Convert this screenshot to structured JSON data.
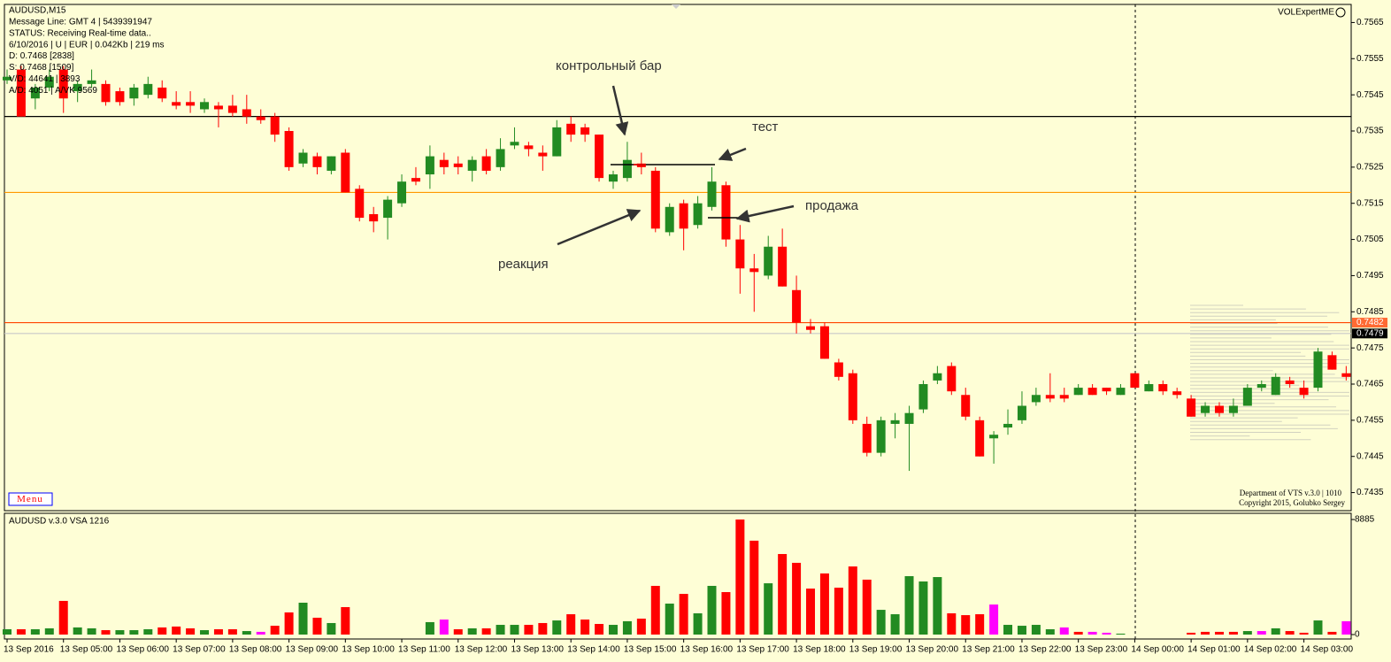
{
  "header": {
    "lines": [
      "AUDUSD,M15",
      "Message Line: GMT 4 | 5439391947",
      "STATUS:  Receiving Real-time data..",
      "6/10/2016 | U | EUR | 0.042Kb | 219 ms",
      "D: 0.7468  [2838]",
      "S: 0.7468  [1509]",
      "V/D: 44641 | 3893",
      "A/D: 4051 | A/VK 9569"
    ],
    "indicator": "VOLExpertME",
    "menu": "Menu",
    "footer": [
      "Department of VTS  v.3.0 | 1010",
      "Copyright 2015, Golubko Sergey"
    ]
  },
  "chart_data": [
    {
      "type": "candlestick",
      "up_color": "#228b22",
      "down_color": "#ff0000",
      "ylim": [
        0.743,
        0.757
      ],
      "yticks": [
        0.7565,
        0.7555,
        0.7545,
        0.7535,
        0.7525,
        0.7515,
        0.7505,
        0.7495,
        0.7485,
        0.7475,
        0.7465,
        0.7455,
        0.7445,
        0.7435
      ],
      "levels": [
        {
          "value": 0.7539,
          "color": "#000000"
        },
        {
          "value": 0.7518,
          "color": "#ff9900"
        },
        {
          "value": 0.7482,
          "color": "#ff4500",
          "label_bg": "#ff6a33"
        },
        {
          "value": 0.7479,
          "color": "#c8c8c8",
          "label_bg": "#000000"
        }
      ],
      "annotations": [
        "контрольный бар",
        "тест",
        "продажа",
        "реакция"
      ],
      "open": [
        0.7549,
        0.7552,
        0.7544,
        0.7547,
        0.7552,
        0.7546,
        0.7548,
        0.7548,
        0.7546,
        0.7544,
        0.7545,
        0.7547,
        0.7543,
        0.7543,
        0.7541,
        0.7542,
        0.7542,
        0.7541,
        0.7539,
        0.7539,
        0.7535,
        0.7526,
        0.7528,
        0.7524,
        0.7529,
        0.7519,
        0.7512,
        0.7511,
        0.7515,
        0.7522,
        0.7523,
        0.7527,
        0.7526,
        0.7524,
        0.7528,
        0.7525,
        0.7531,
        0.7531,
        0.7529,
        0.7528,
        0.7537,
        0.7536,
        0.7534,
        0.7521,
        0.7522,
        0.7526,
        0.7524,
        0.7507,
        0.7515,
        0.7509,
        0.7514,
        0.752,
        0.7505,
        0.7497,
        0.7495,
        0.7503,
        0.7491,
        0.7481,
        0.7481,
        0.7471,
        0.7468,
        0.7454,
        0.7446,
        0.7454,
        0.7454,
        0.7458,
        0.7466,
        0.747,
        0.7462,
        0.7455,
        0.745,
        0.7453,
        0.7455,
        0.746,
        0.7462,
        0.7462,
        0.7462,
        0.7464,
        0.7464,
        0.7462,
        0.7468,
        0.7463,
        0.7465,
        0.7463,
        0.7461,
        0.7457,
        0.7459,
        0.7457,
        0.7459,
        0.7464,
        0.7462,
        0.7466,
        0.7464,
        0.7464,
        0.7473,
        0.7468
      ],
      "high": [
        0.7552,
        0.7553,
        0.7548,
        0.7552,
        0.7553,
        0.7549,
        0.7552,
        0.7549,
        0.7547,
        0.7548,
        0.755,
        0.7549,
        0.7546,
        0.7546,
        0.7544,
        0.7543,
        0.7545,
        0.7545,
        0.7541,
        0.754,
        0.7536,
        0.753,
        0.7529,
        0.7528,
        0.753,
        0.752,
        0.7514,
        0.7517,
        0.7523,
        0.7525,
        0.7531,
        0.7529,
        0.7528,
        0.7528,
        0.753,
        0.7533,
        0.7536,
        0.7532,
        0.7531,
        0.7538,
        0.7539,
        0.7537,
        0.7534,
        0.7524,
        0.7532,
        0.7529,
        0.7525,
        0.7515,
        0.7516,
        0.7517,
        0.7525,
        0.7521,
        0.7509,
        0.7501,
        0.7506,
        0.7508,
        0.7495,
        0.7483,
        0.7482,
        0.7472,
        0.7469,
        0.7456,
        0.7456,
        0.7457,
        0.7459,
        0.7466,
        0.747,
        0.7471,
        0.7464,
        0.7456,
        0.7452,
        0.7458,
        0.7463,
        0.7464,
        0.7468,
        0.7464,
        0.7465,
        0.7465,
        0.7464,
        0.7465,
        0.7468,
        0.7466,
        0.7466,
        0.7464,
        0.7462,
        0.746,
        0.746,
        0.7461,
        0.7465,
        0.7466,
        0.7468,
        0.7467,
        0.7466,
        0.7475,
        0.7474,
        0.747
      ],
      "low": [
        0.7548,
        0.7539,
        0.7541,
        0.7546,
        0.754,
        0.7543,
        0.7547,
        0.7542,
        0.7542,
        0.7542,
        0.7544,
        0.7543,
        0.7541,
        0.754,
        0.754,
        0.7536,
        0.7539,
        0.7537,
        0.7537,
        0.7532,
        0.7524,
        0.7525,
        0.7523,
        0.7523,
        0.7518,
        0.751,
        0.7507,
        0.7505,
        0.7514,
        0.752,
        0.7519,
        0.7523,
        0.7523,
        0.7521,
        0.7523,
        0.7524,
        0.753,
        0.7528,
        0.7524,
        0.7528,
        0.7532,
        0.7532,
        0.7521,
        0.7519,
        0.7521,
        0.7523,
        0.7507,
        0.7506,
        0.7502,
        0.7508,
        0.7513,
        0.7503,
        0.749,
        0.7485,
        0.7494,
        0.7492,
        0.7479,
        0.7479,
        0.7472,
        0.7466,
        0.7454,
        0.7445,
        0.7445,
        0.745,
        0.7441,
        0.7457,
        0.7465,
        0.7462,
        0.7455,
        0.7445,
        0.7443,
        0.7451,
        0.7454,
        0.7459,
        0.746,
        0.746,
        0.7462,
        0.7462,
        0.7462,
        0.7462,
        0.7464,
        0.7463,
        0.7462,
        0.7461,
        0.7456,
        0.7456,
        0.7456,
        0.7456,
        0.7459,
        0.7463,
        0.7462,
        0.7464,
        0.7461,
        0.7463,
        0.7469,
        0.7466
      ],
      "close": [
        0.755,
        0.7539,
        0.7547,
        0.755,
        0.7544,
        0.7548,
        0.7549,
        0.7543,
        0.7543,
        0.7547,
        0.7548,
        0.7544,
        0.7542,
        0.7542,
        0.7543,
        0.7541,
        0.754,
        0.7539,
        0.7538,
        0.7534,
        0.7525,
        0.7529,
        0.7525,
        0.7528,
        0.7518,
        0.7511,
        0.751,
        0.7516,
        0.7521,
        0.7521,
        0.7528,
        0.7525,
        0.7525,
        0.7527,
        0.7524,
        0.753,
        0.7532,
        0.753,
        0.7528,
        0.7536,
        0.7534,
        0.7534,
        0.7522,
        0.7523,
        0.7527,
        0.7525,
        0.7508,
        0.7514,
        0.7508,
        0.7515,
        0.7521,
        0.7505,
        0.7497,
        0.7496,
        0.7503,
        0.7492,
        0.7482,
        0.748,
        0.7472,
        0.7467,
        0.7455,
        0.7446,
        0.7455,
        0.7455,
        0.7457,
        0.7465,
        0.7468,
        0.7463,
        0.7456,
        0.7445,
        0.7451,
        0.7454,
        0.7459,
        0.7462,
        0.7461,
        0.7461,
        0.7464,
        0.7462,
        0.7463,
        0.7464,
        0.7464,
        0.7465,
        0.7463,
        0.7462,
        0.7456,
        0.7459,
        0.7457,
        0.7459,
        0.7464,
        0.7465,
        0.7467,
        0.7465,
        0.7462,
        0.7474,
        0.7469,
        0.7467
      ]
    },
    {
      "type": "bar",
      "title": "AUDUSD v.3.0 VSA 1216",
      "ylim": [
        0,
        8885
      ],
      "yticks": [
        0,
        8885
      ],
      "categories": [
        "13 Sep 2016",
        null,
        null,
        null,
        "13 Sep 05:00",
        null,
        null,
        null,
        "13 Sep 06:00",
        null,
        null,
        null,
        "13 Sep 07:00",
        null,
        null,
        null,
        "13 Sep 08:00",
        null,
        null,
        null,
        "13 Sep 09:00",
        null,
        null,
        null,
        "13 Sep 10:00",
        null,
        null,
        null,
        "13 Sep 11:00",
        null,
        null,
        null,
        "13 Sep 12:00",
        null,
        null,
        null,
        "13 Sep 13:00",
        null,
        null,
        null,
        "13 Sep 14:00",
        null,
        null,
        null,
        "13 Sep 15:00",
        null,
        null,
        null,
        "13 Sep 16:00",
        null,
        null,
        null,
        "13 Sep 17:00",
        null,
        null,
        null,
        "13 Sep 18:00",
        null,
        null,
        null,
        "13 Sep 19:00",
        null,
        null,
        null,
        "13 Sep 20:00",
        null,
        null,
        null,
        "13 Sep 21:00",
        null,
        null,
        null,
        "13 Sep 22:00",
        null,
        null,
        null,
        "13 Sep 23:00",
        null,
        null,
        null,
        "14 Sep 00:00",
        null,
        null,
        null,
        "14 Sep 01:00",
        null,
        null,
        null,
        "14 Sep 02:00",
        null,
        null,
        null,
        "14 Sep 03:00",
        null,
        null,
        null
      ],
      "values": [
        410,
        410,
        410,
        480,
        2600,
        550,
        480,
        340,
        340,
        340,
        410,
        550,
        620,
        480,
        340,
        410,
        410,
        270,
        210,
        680,
        1710,
        2460,
        1300,
        890,
        2120,
        0,
        0,
        0,
        0,
        0,
        960,
        1160,
        410,
        480,
        480,
        750,
        750,
        750,
        890,
        1090,
        1570,
        1160,
        820,
        750,
        1030,
        1230,
        3760,
        2390,
        3140,
        1640,
        3760,
        3280,
        8885,
        7250,
        3960,
        6220,
        5540,
        3550,
        4720,
        3620,
        5260,
        4240,
        1910,
        1570,
        4510,
        4100,
        4440,
        1640,
        1500,
        1570,
        2320,
        750,
        680,
        750,
        410,
        550,
        210,
        210,
        140,
        70,
        0,
        0,
        0,
        0,
        140,
        210,
        210,
        210,
        270,
        270,
        480,
        270,
        140,
        1090,
        210,
        1030
      ],
      "colors": [
        "#228b22",
        "#ff0000",
        "#228b22",
        "#228b22",
        "#ff0000",
        "#228b22",
        "#228b22",
        "#ff0000",
        "#228b22",
        "#228b22",
        "#228b22",
        "#ff0000",
        "#ff0000",
        "#ff0000",
        "#228b22",
        "#ff0000",
        "#ff0000",
        "#228b22",
        "#ff00ff",
        "#ff0000",
        "#ff0000",
        "#228b22",
        "#ff0000",
        "#228b22",
        "#ff0000",
        "#228b22",
        "#228b22",
        "#228b22",
        "#228b22",
        "#228b22",
        "#228b22",
        "#ff00ff",
        "#ff0000",
        "#228b22",
        "#ff0000",
        "#228b22",
        "#228b22",
        "#ff0000",
        "#ff0000",
        "#228b22",
        "#ff0000",
        "#ff0000",
        "#ff0000",
        "#228b22",
        "#228b22",
        "#ff0000",
        "#ff0000",
        "#228b22",
        "#ff0000",
        "#228b22",
        "#228b22",
        "#ff0000",
        "#ff0000",
        "#ff0000",
        "#228b22",
        "#ff0000",
        "#ff0000",
        "#ff0000",
        "#ff0000",
        "#ff0000",
        "#ff0000",
        "#ff0000",
        "#228b22",
        "#228b22",
        "#228b22",
        "#228b22",
        "#228b22",
        "#ff0000",
        "#ff0000",
        "#ff0000",
        "#ff00ff",
        "#228b22",
        "#228b22",
        "#228b22",
        "#228b22",
        "#ff00ff",
        "#ff0000",
        "#ff00ff",
        "#ff00ff",
        "#228b22",
        "#228b22",
        "#228b22",
        "#228b22",
        "#228b22",
        "#ff0000",
        "#ff0000",
        "#ff0000",
        "#ff0000",
        "#228b22",
        "#ff00ff",
        "#228b22",
        "#ff0000",
        "#ff0000",
        "#228b22",
        "#ff0000",
        "#ff00ff"
      ]
    }
  ]
}
